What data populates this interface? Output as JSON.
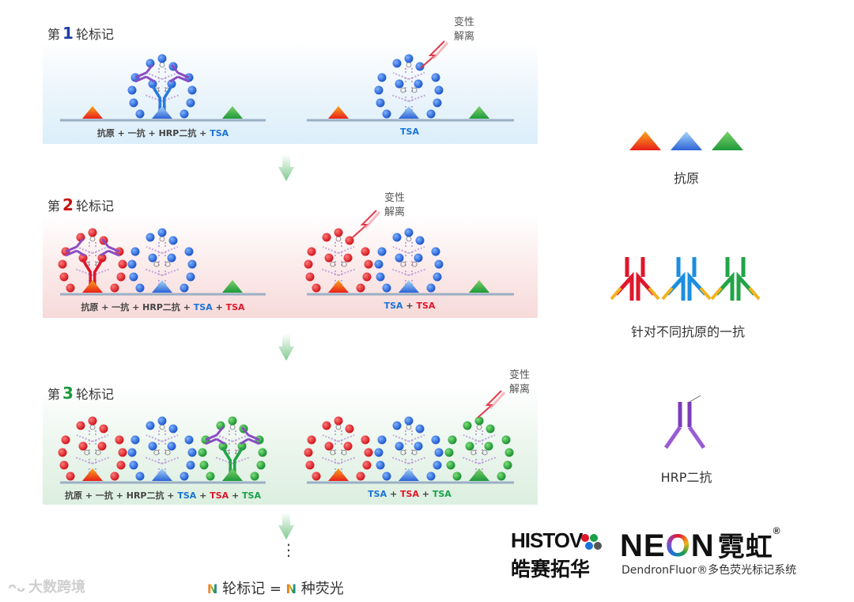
{
  "rounds": [
    {
      "prefix": "第",
      "number": "1",
      "suffix": "轮标记",
      "number_color": "#1e3fa8",
      "left_steps": [
        [
          "抗原 + 一抗 + HRP二抗 + ",
          "#444"
        ],
        [
          "TSA",
          "#1a73d9"
        ]
      ],
      "right_steps": [
        [
          "TSA",
          "#1a73d9"
        ]
      ],
      "denature": [
        "变性",
        "解离"
      ]
    },
    {
      "prefix": "第",
      "number": "2",
      "suffix": "轮标记",
      "number_color": "#c81414",
      "left_steps": [
        [
          "抗原 + 一抗 + HRP二抗 + ",
          "#444"
        ],
        [
          "TSA",
          "#1a73d9"
        ],
        [
          " + ",
          "#444"
        ],
        [
          "TSA",
          "#e0162b"
        ]
      ],
      "right_steps": [
        [
          "TSA",
          "#1a73d9"
        ],
        [
          " + ",
          "#444"
        ],
        [
          "TSA",
          "#e0162b"
        ]
      ],
      "denature": [
        "变性",
        "解离"
      ]
    },
    {
      "prefix": "第",
      "number": "3",
      "suffix": "轮标记",
      "number_color": "#1a9a3c",
      "left_steps": [
        [
          "抗原 + 一抗 + HRP二抗 + ",
          "#444"
        ],
        [
          "TSA",
          "#1a73d9"
        ],
        [
          " + ",
          "#444"
        ],
        [
          "TSA",
          "#e0162b"
        ],
        [
          " + ",
          "#444"
        ],
        [
          "TSA",
          "#1aa04a"
        ]
      ],
      "right_steps": [
        [
          "TSA",
          "#1a73d9"
        ],
        [
          " + ",
          "#444"
        ],
        [
          "TSA",
          "#e0162b"
        ],
        [
          " + ",
          "#444"
        ],
        [
          "TSA",
          "#1aa04a"
        ]
      ],
      "denature": [
        "变性",
        "解离"
      ]
    }
  ],
  "legend": {
    "antigen": "抗原",
    "primary": "针对不同抗原的一抗",
    "secondary": "HRP二抗"
  },
  "bottom": {
    "dots": "⋮",
    "badge": "N",
    "left": "轮标记 =",
    "right": "种荧光"
  },
  "logos": {
    "histov": "HISTOV",
    "histov_cn": "皓赛拓华",
    "neon": "NE",
    "neon_o": "O",
    "neon_n": "N",
    "neon_cn": "霓虹",
    "reg": "®",
    "neon_sub": "DendronFluor®多色荧光标记系统"
  },
  "watermark": "大数跨境",
  "colors": {
    "blue": "#1a73d9",
    "red": "#e0162b",
    "green": "#1aa04a",
    "purple": "#8a4cc4"
  }
}
